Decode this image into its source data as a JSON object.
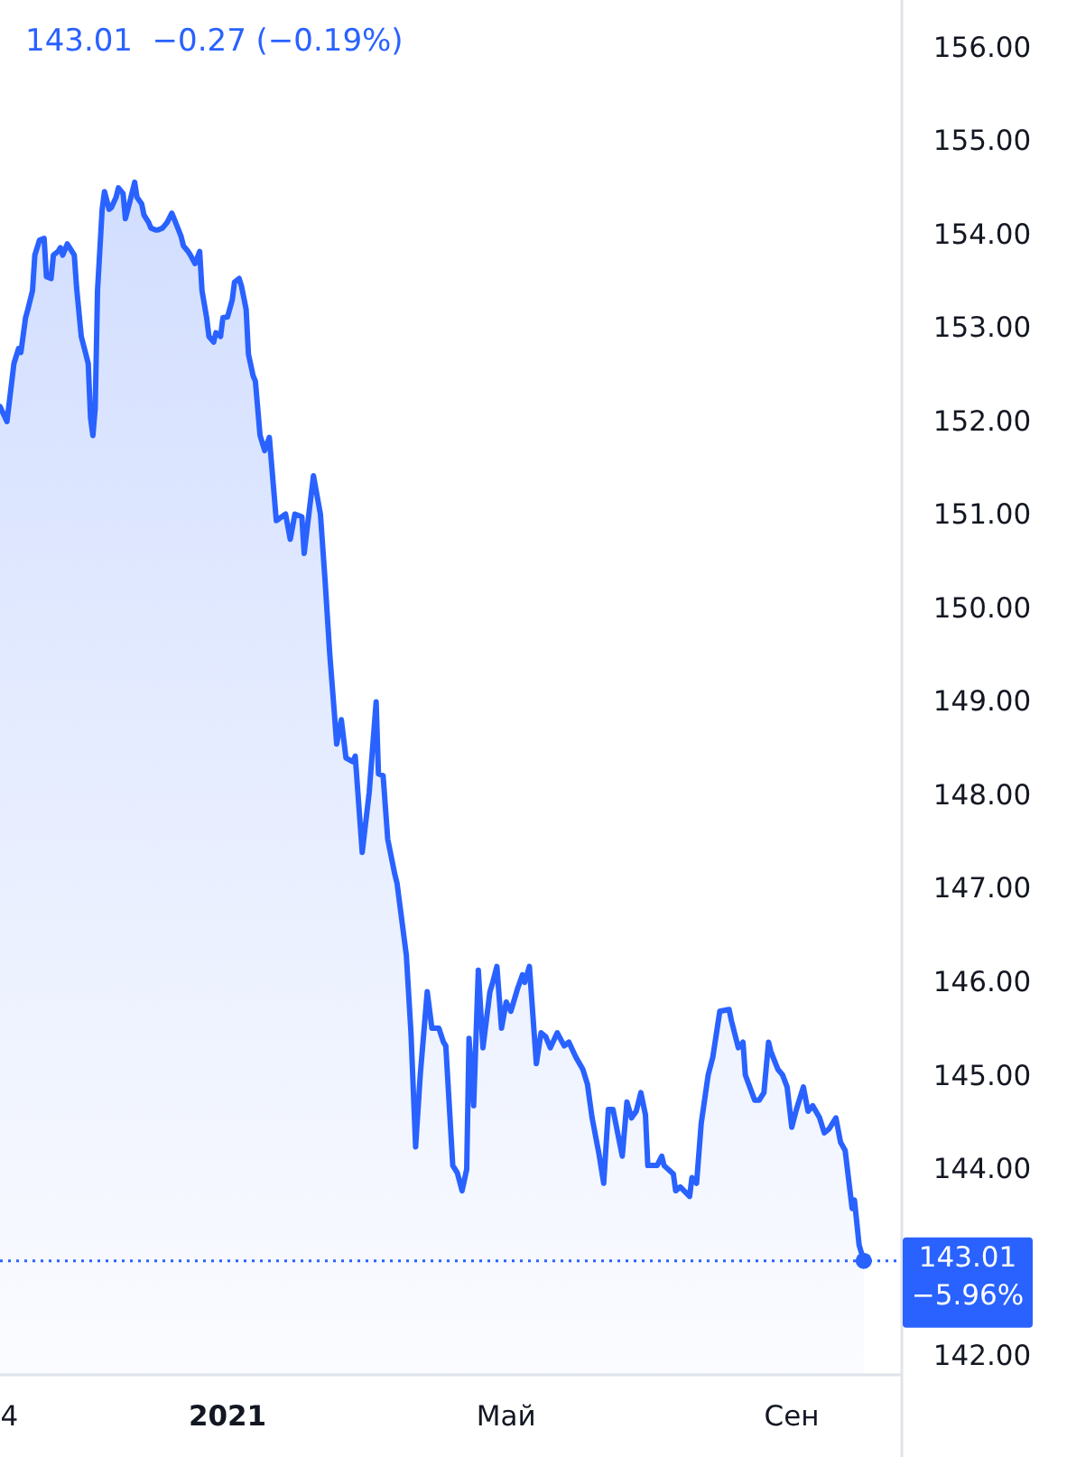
{
  "chart_data": {
    "type": "area",
    "title": "143.01  −0.27 (−0.19%)",
    "x": [
      "2020-09-25",
      "2020-09-28",
      "2020-10-01",
      "2020-10-03",
      "2020-10-04",
      "2020-10-06",
      "2020-10-07",
      "2020-10-09",
      "2020-10-10",
      "2020-10-12",
      "2020-10-14",
      "2020-10-15",
      "2020-10-17",
      "2020-10-18",
      "2020-10-20",
      "2020-10-21",
      "2020-10-22",
      "2020-10-24",
      "2020-10-25",
      "2020-10-27",
      "2020-10-28",
      "2020-10-30",
      "2020-11-01",
      "2020-11-02",
      "2020-11-03",
      "2020-11-04",
      "2020-11-05",
      "2020-11-06",
      "2020-11-08",
      "2020-11-09",
      "2020-11-11",
      "2020-11-12",
      "2020-11-14",
      "2020-11-15",
      "2020-11-17",
      "2020-11-18",
      "2020-11-20",
      "2020-11-22",
      "2020-11-23",
      "2020-11-25",
      "2020-11-26",
      "2020-11-28",
      "2020-11-29",
      "2020-12-01",
      "2020-12-02",
      "2020-12-04",
      "2020-12-06",
      "2020-12-08",
      "2020-12-09",
      "2020-12-12",
      "2020-12-13",
      "2020-12-15",
      "2020-12-16",
      "2020-12-18",
      "2020-12-20",
      "2020-12-21",
      "2020-12-23",
      "2020-12-24",
      "2020-12-26",
      "2020-12-27",
      "2020-12-29",
      "2020-12-30",
      "2021-01-01",
      "2021-01-03",
      "2021-01-04",
      "2021-01-06",
      "2021-01-07",
      "2021-01-09",
      "2021-01-10",
      "2021-01-12",
      "2021-01-13",
      "2021-01-15",
      "2021-01-17",
      "2021-01-19",
      "2021-01-22",
      "2021-01-26",
      "2021-01-28",
      "2021-01-30",
      "2021-02-02",
      "2021-02-03",
      "2021-02-07",
      "2021-02-10",
      "2021-02-12",
      "2021-02-14",
      "2021-02-16",
      "2021-02-17",
      "2021-02-19",
      "2021-02-21",
      "2021-02-24",
      "2021-02-25",
      "2021-02-28",
      "2021-03-03",
      "2021-03-06",
      "2021-03-07",
      "2021-03-09",
      "2021-03-11",
      "2021-03-14",
      "2021-03-15",
      "2021-03-19",
      "2021-03-21",
      "2021-03-23",
      "2021-03-25",
      "2021-03-28",
      "2021-03-30",
      "2021-04-02",
      "2021-04-04",
      "2021-04-05",
      "2021-04-08",
      "2021-04-10",
      "2021-04-12",
      "2021-04-14",
      "2021-04-15",
      "2021-04-17",
      "2021-04-19",
      "2021-04-21",
      "2021-04-24",
      "2021-04-25",
      "2021-04-27",
      "2021-04-29",
      "2021-05-01",
      "2021-05-03",
      "2021-05-06",
      "2021-05-08",
      "2021-05-09",
      "2021-05-11",
      "2021-05-14",
      "2021-05-16",
      "2021-05-18",
      "2021-05-20",
      "2021-05-23",
      "2021-05-26",
      "2021-05-28",
      "2021-05-31",
      "2021-06-03",
      "2021-06-05",
      "2021-06-07",
      "2021-06-10",
      "2021-06-12",
      "2021-06-14",
      "2021-06-16",
      "2021-06-20",
      "2021-06-22",
      "2021-06-24",
      "2021-06-26",
      "2021-06-28",
      "2021-06-30",
      "2021-07-01",
      "2021-07-05",
      "2021-07-07",
      "2021-07-08",
      "2021-07-12",
      "2021-07-13",
      "2021-07-15",
      "2021-07-19",
      "2021-07-20",
      "2021-07-22",
      "2021-07-24",
      "2021-07-27",
      "2021-07-29",
      "2021-08-01",
      "2021-08-05",
      "2021-08-06",
      "2021-08-09",
      "2021-08-11",
      "2021-08-12",
      "2021-08-16",
      "2021-08-18",
      "2021-08-20",
      "2021-08-22",
      "2021-08-23",
      "2021-08-26",
      "2021-08-28",
      "2021-08-30",
      "2021-09-01",
      "2021-09-03",
      "2021-09-06",
      "2021-09-08",
      "2021-09-10",
      "2021-09-13",
      "2021-09-15",
      "2021-09-17",
      "2021-09-20",
      "2021-09-22",
      "2021-09-24",
      "2021-09-27",
      "2021-09-28",
      "2021-09-30",
      "2021-10-02"
    ],
    "series": [
      {
        "color": "#2962ff",
        "values": [
          152.15,
          151.99,
          152.61,
          152.77,
          152.73,
          153.1,
          153.19,
          153.39,
          153.77,
          153.93,
          153.95,
          153.54,
          153.52,
          153.77,
          153.81,
          153.85,
          153.77,
          153.89,
          153.85,
          153.77,
          153.42,
          152.9,
          152.71,
          152.61,
          152.03,
          151.84,
          152.13,
          153.39,
          154.26,
          154.45,
          154.26,
          154.28,
          154.39,
          154.49,
          154.43,
          154.16,
          154.35,
          154.55,
          154.39,
          154.32,
          154.2,
          154.12,
          154.06,
          154.04,
          154.04,
          154.06,
          154.12,
          154.22,
          154.16,
          153.97,
          153.87,
          153.81,
          153.77,
          153.68,
          153.81,
          153.39,
          153.1,
          152.9,
          152.84,
          152.94,
          152.9,
          153.1,
          153.11,
          153.29,
          153.48,
          153.52,
          153.44,
          153.19,
          152.71,
          152.48,
          152.42,
          151.84,
          151.68,
          151.82,
          150.93,
          151.0,
          150.73,
          151.0,
          150.97,
          150.58,
          151.41,
          151.0,
          150.29,
          149.51,
          148.87,
          148.54,
          148.8,
          148.39,
          148.35,
          148.41,
          147.38,
          148.02,
          148.99,
          148.22,
          148.2,
          147.52,
          147.15,
          147.05,
          146.28,
          145.45,
          144.23,
          145.0,
          145.89,
          145.5,
          145.5,
          145.35,
          145.31,
          144.03,
          143.95,
          143.76,
          143.99,
          145.39,
          144.67,
          146.12,
          145.29,
          145.89,
          145.97,
          146.16,
          145.5,
          145.78,
          145.68,
          145.93,
          146.07,
          145.99,
          146.16,
          145.12,
          145.45,
          145.41,
          145.29,
          145.45,
          145.31,
          145.35,
          145.19,
          145.06,
          144.9,
          144.54,
          144.15,
          143.84,
          144.63,
          144.63,
          144.13,
          144.71,
          144.54,
          144.61,
          144.81,
          144.57,
          144.03,
          144.03,
          144.13,
          144.03,
          143.94,
          143.76,
          143.8,
          143.7,
          143.9,
          143.84,
          144.48,
          145.0,
          145.19,
          145.68,
          145.7,
          145.58,
          145.29,
          145.35,
          145.0,
          144.73,
          144.73,
          144.81,
          145.35,
          145.25,
          145.06,
          145.0,
          144.87,
          144.44,
          144.63,
          144.87,
          144.61,
          144.67,
          144.54,
          144.38,
          144.42,
          144.54,
          144.28,
          144.19,
          143.57,
          143.66,
          143.18,
          143.01
        ]
      }
    ],
    "xlim": [
      "2020-09-25",
      "2021-10-18"
    ],
    "xticks": [
      {
        "value": "2020-09-29",
        "label": "4"
      },
      {
        "value": "2021-01-01",
        "label": "2021"
      },
      {
        "value": "2021-05-01",
        "label": "Май"
      },
      {
        "value": "2021-09-01",
        "label": "Сен"
      }
    ],
    "ylim": [
      141.8,
      156.5
    ],
    "yticks": [
      {
        "value": 142,
        "label": "142.00"
      },
      {
        "value": 144,
        "label": "144.00"
      },
      {
        "value": 145,
        "label": "145.00"
      },
      {
        "value": 146,
        "label": "146.00"
      },
      {
        "value": 147,
        "label": "147.00"
      },
      {
        "value": 148,
        "label": "148.00"
      },
      {
        "value": 149,
        "label": "149.00"
      },
      {
        "value": 150,
        "label": "150.00"
      },
      {
        "value": 151,
        "label": "151.00"
      },
      {
        "value": 152,
        "label": "152.00"
      },
      {
        "value": 153,
        "label": "153.00"
      },
      {
        "value": 154,
        "label": "154.00"
      },
      {
        "value": 155,
        "label": "155.00"
      },
      {
        "value": 156,
        "label": "156.00"
      }
    ],
    "ref_lines": [
      {
        "axis": "y",
        "value": 143.01,
        "label": "143.01\n−5.96%",
        "color": "#2962ff",
        "line_style": "dotted"
      }
    ],
    "line_style": "solid"
  }
}
